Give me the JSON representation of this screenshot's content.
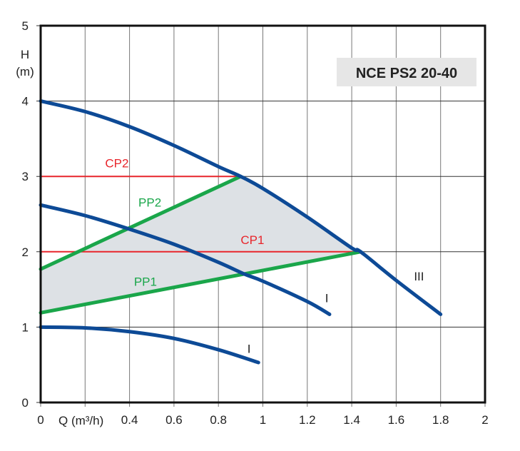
{
  "chart_data": {
    "type": "line",
    "title": "NCE PS2 20-40",
    "xlabel": "Q (m³/h)",
    "ylabel_line1": "H",
    "ylabel_line2": "(m)",
    "xlim": [
      0,
      2
    ],
    "ylim": [
      0,
      5
    ],
    "grid": true,
    "x_ticks": [
      "0",
      "",
      "0.4",
      "0.6",
      "0.8",
      "1",
      "1.2",
      "1.4",
      "1.6",
      "1.8",
      "2"
    ],
    "x_tick_values": [
      0,
      0.2,
      0.4,
      0.6,
      0.8,
      1,
      1.2,
      1.4,
      1.6,
      1.8,
      2
    ],
    "y_ticks": [
      "0",
      "1",
      "2",
      "3",
      "4",
      "5"
    ],
    "y_tick_values": [
      0,
      1,
      2,
      3,
      4,
      5
    ],
    "colors": {
      "curve": "#0d4a96",
      "pp": "#1aa64a",
      "cp": "#e8252b",
      "area": "#dde1e5",
      "titlebox": "#e6e6e6"
    },
    "series": [
      {
        "name": "III",
        "kind": "curve",
        "label_at": [
          1.68,
          1.62
        ],
        "x": [
          0,
          0.2,
          0.4,
          0.6,
          0.8,
          0.9,
          1.0,
          1.2,
          1.4,
          1.44,
          1.6,
          1.8
        ],
        "y": [
          4.0,
          3.86,
          3.66,
          3.41,
          3.13,
          3.0,
          2.84,
          2.46,
          2.05,
          2.0,
          1.62,
          1.17
        ]
      },
      {
        "name": "I",
        "kind": "curve",
        "label_at": [
          1.28,
          1.33
        ],
        "x": [
          0,
          0.2,
          0.4,
          0.6,
          0.8,
          0.92,
          1.0,
          1.2,
          1.3
        ],
        "y": [
          2.62,
          2.48,
          2.3,
          2.1,
          1.86,
          1.7,
          1.61,
          1.34,
          1.17
        ]
      },
      {
        "name": "I",
        "kind": "curve",
        "label_at": [
          0.93,
          0.66
        ],
        "x": [
          0,
          0.2,
          0.4,
          0.6,
          0.8,
          0.98
        ],
        "y": [
          1.0,
          0.99,
          0.94,
          0.85,
          0.7,
          0.53
        ]
      },
      {
        "name": "PP2",
        "kind": "pp",
        "label_at": [
          0.44,
          2.6
        ],
        "x": [
          0,
          0.9
        ],
        "y": [
          1.77,
          3.0
        ]
      },
      {
        "name": "PP1",
        "kind": "pp",
        "label_at": [
          0.42,
          1.55
        ],
        "x": [
          0,
          1.44
        ],
        "y": [
          1.19,
          2.0
        ]
      },
      {
        "name": "CP2",
        "kind": "cp",
        "label_at": [
          0.29,
          3.12
        ],
        "x": [
          0,
          0.9
        ],
        "y": [
          3.0,
          3.0
        ]
      },
      {
        "name": "CP1",
        "kind": "cp",
        "label_at": [
          0.9,
          2.1
        ],
        "x": [
          0,
          1.44
        ],
        "y": [
          2.0,
          2.0
        ]
      }
    ]
  }
}
